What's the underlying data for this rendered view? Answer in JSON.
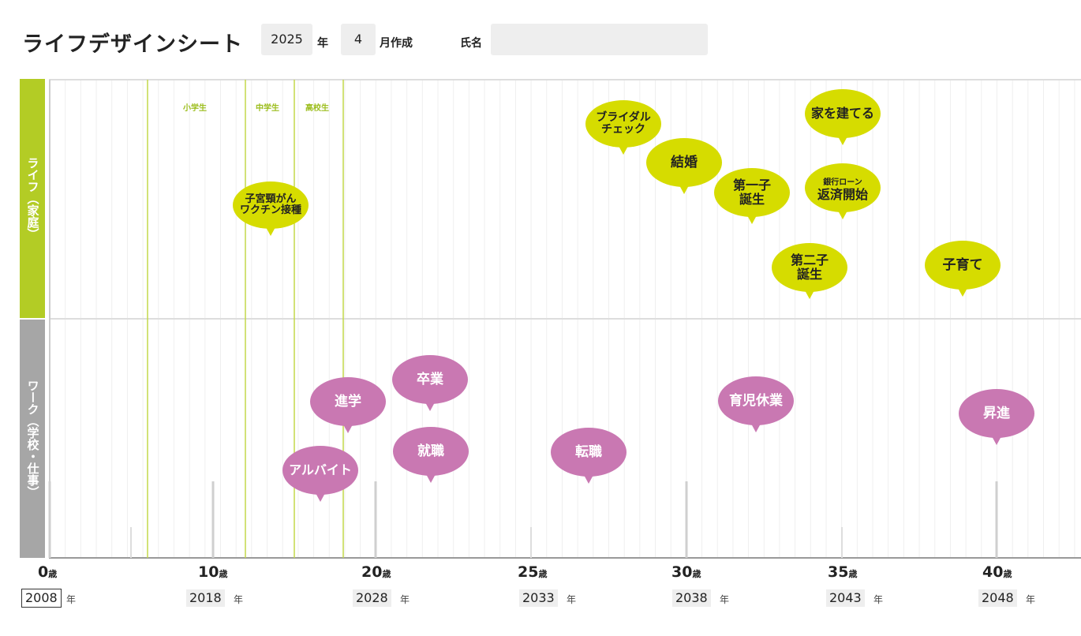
{
  "header": {
    "title": "ライフデザインシート",
    "year_value": "2025",
    "year_label": "年",
    "month_value": "4",
    "month_label": "月作成",
    "name_label": "氏名",
    "name_value": ""
  },
  "bands": {
    "life": "ライフ（家庭）",
    "work": "ワーク（学校・仕事）"
  },
  "stages": [
    "小学生",
    "中学生",
    "高校生"
  ],
  "life_events": {
    "bridal": [
      "ブライダル",
      "チェック"
    ],
    "house": "家を建てる",
    "vaccine": [
      "子宮頸がん",
      "ワクチン接種"
    ],
    "marriage": "結婚",
    "first_child": [
      "第一子",
      "誕生"
    ],
    "loan_small": "銀行ローン",
    "loan": "返済開始",
    "second_child": [
      "第二子",
      "誕生"
    ],
    "childcare": "子育て"
  },
  "work_events": {
    "graduation": "卒業",
    "advance": "進学",
    "parental_leave": "育児休業",
    "promotion": "昇進",
    "job": "就職",
    "change_job": "転職",
    "parttime": "アルバイト"
  },
  "axis": {
    "age_unit": "歳",
    "year_unit": "年",
    "ages": [
      "0",
      "10",
      "20",
      "25",
      "30",
      "35",
      "40"
    ],
    "years": [
      "2008",
      "2018",
      "2028",
      "2033",
      "2038",
      "2043",
      "2048"
    ]
  },
  "colors": {
    "life": "#b3cc25",
    "life_bubble": "#d6dc00",
    "work": "#a6a6a6",
    "work_bubble": "#c978b2",
    "stage_line": "#c3d94a"
  }
}
